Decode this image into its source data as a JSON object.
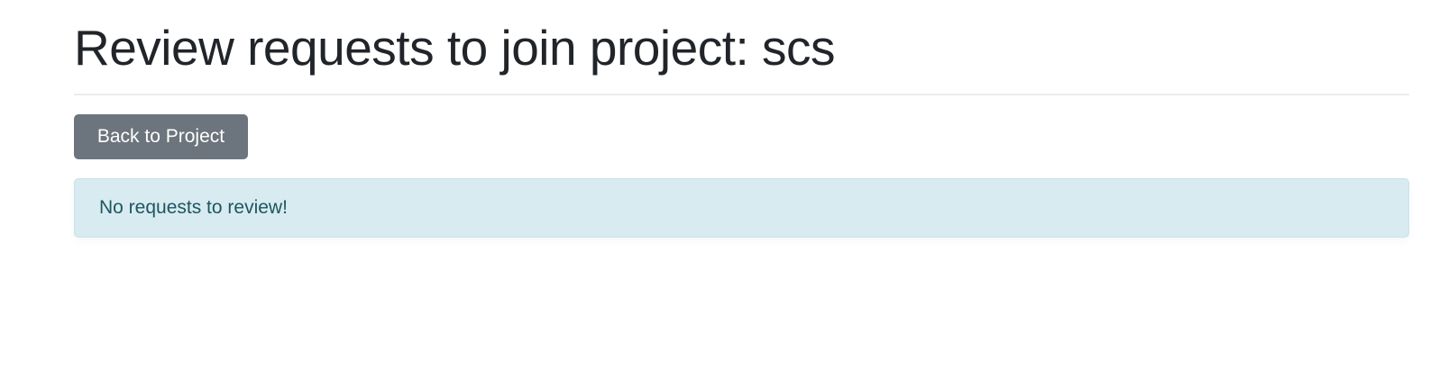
{
  "header": {
    "title": "Review requests to join project: scs"
  },
  "actions": {
    "back_label": "Back to Project"
  },
  "alert": {
    "message": "No requests to review!"
  },
  "colors": {
    "button_bg": "#6c757d",
    "alert_bg": "#d7ebf0",
    "alert_text": "#1f5561",
    "title_text": "#212529"
  }
}
